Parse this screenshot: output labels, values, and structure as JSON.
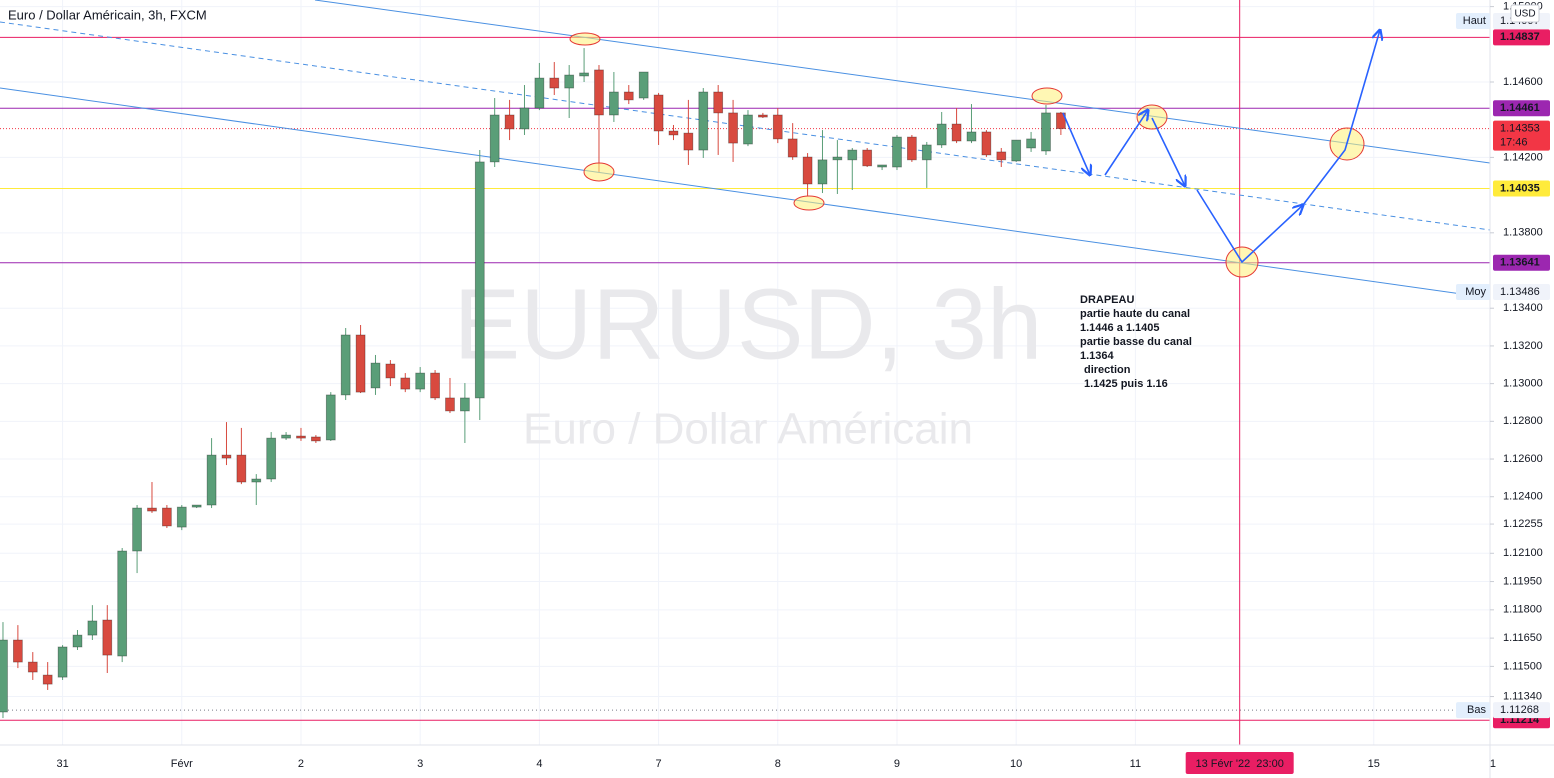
{
  "chart_data": {
    "type": "candlestick",
    "title": "Euro / Dollar Américain, 3h, FXCM",
    "watermark": "EURUSD, 3h",
    "watermark_subtitle": "Euro / Dollar Américain",
    "currency": "USD",
    "xlim": [
      -0.2,
      99.8
    ],
    "ylim": [
      1.11083,
      1.15035
    ],
    "grid": true,
    "up_color": "#5a9e78",
    "down_color": "#d84a3f",
    "yticks": [
      {
        "value": 1.15,
        "label": "1.15000"
      },
      {
        "value": 1.146,
        "label": "1.14600"
      },
      {
        "value": 1.142,
        "label": "1.14200"
      },
      {
        "value": 1.138,
        "label": "1.13800"
      },
      {
        "value": 1.134,
        "label": "1.13400"
      },
      {
        "value": 1.132,
        "label": "1.13200"
      },
      {
        "value": 1.13,
        "label": "1.13000"
      },
      {
        "value": 1.128,
        "label": "1.12800"
      },
      {
        "value": 1.126,
        "label": "1.12600"
      },
      {
        "value": 1.124,
        "label": "1.12400"
      },
      {
        "value": 1.12255,
        "label": "1.12255"
      },
      {
        "value": 1.121,
        "label": "1.12100"
      },
      {
        "value": 1.1195,
        "label": "1.11950"
      },
      {
        "value": 1.118,
        "label": "1.11800"
      },
      {
        "value": 1.1165,
        "label": "1.11650"
      },
      {
        "value": 1.115,
        "label": "1.11500"
      },
      {
        "value": 1.1134,
        "label": "1.11340"
      }
    ],
    "xticks": [
      {
        "value": 4,
        "label": "31"
      },
      {
        "value": 12,
        "label": "Févr"
      },
      {
        "value": 20,
        "label": "2"
      },
      {
        "value": 28,
        "label": "3"
      },
      {
        "value": 36,
        "label": "4"
      },
      {
        "value": 44,
        "label": "7"
      },
      {
        "value": 52,
        "label": "8"
      },
      {
        "value": 60,
        "label": "9"
      },
      {
        "value": 68,
        "label": "10"
      },
      {
        "value": 76,
        "label": "11"
      },
      {
        "value": 92,
        "label": "15"
      },
      {
        "value": 100,
        "label": "1"
      }
    ],
    "open": [
      1.11258,
      1.1164,
      1.11523,
      1.11454,
      1.11443,
      1.11603,
      1.11666,
      1.11746,
      1.11555,
      1.12112,
      1.1234,
      1.1234,
      1.12239,
      1.12345,
      1.12356,
      1.12621,
      1.12621,
      1.12478,
      1.12494,
      1.12711,
      1.12722,
      1.12717,
      1.12701,
      1.1294,
      1.13258,
      1.12977,
      1.13104,
      1.1303,
      1.12971,
      1.13056,
      1.12924,
      1.12855,
      1.12924,
      1.14176,
      1.14425,
      1.14351,
      1.14462,
      1.14621,
      1.14568,
      1.14632,
      1.14664,
      1.14425,
      1.14547,
      1.14515,
      1.14531,
      1.1434,
      1.14329,
      1.14239,
      1.14547,
      1.14436,
      1.14271,
      1.14425,
      1.14425,
      1.14298,
      1.14202,
      1.14059,
      1.14187,
      1.14187,
      1.14239,
      1.14149,
      1.14149,
      1.14308,
      1.14187,
      1.14266,
      1.14377,
      1.14287,
      1.14335,
      1.14229,
      1.14181,
      1.1425,
      1.14234,
      1.14436
    ],
    "high": [
      1.11735,
      1.11719,
      1.11576,
      1.11523,
      1.11613,
      1.11693,
      1.11825,
      1.11825,
      1.12128,
      1.12356,
      1.12478,
      1.12356,
      1.12356,
      1.12356,
      1.12711,
      1.12796,
      1.12765,
      1.1252,
      1.12743,
      1.12743,
      1.12765,
      1.12727,
      1.12955,
      1.13295,
      1.13311,
      1.13152,
      1.13125,
      1.13056,
      1.13088,
      1.13072,
      1.1303,
      1.13003,
      1.14239,
      1.14515,
      1.14505,
      1.14584,
      1.14701,
      1.14706,
      1.1469,
      1.1478,
      1.1469,
      1.14653,
      1.14584,
      1.14653,
      1.14542,
      1.14372,
      1.14505,
      1.14568,
      1.14584,
      1.14505,
      1.14451,
      1.14436,
      1.14462,
      1.14382,
      1.14223,
      1.14345,
      1.14292,
      1.1425,
      1.1425,
      1.1416,
      1.14319,
      1.14319,
      1.14282,
      1.14441,
      1.14462,
      1.14483,
      1.14345,
      1.1425,
      1.14292,
      1.14335,
      1.14478,
      1.14441
    ],
    "low": [
      1.11226,
      1.11491,
      1.11428,
      1.11375,
      1.11428,
      1.11587,
      1.1164,
      1.11465,
      1.11523,
      1.11995,
      1.12314,
      1.12234,
      1.12223,
      1.1234,
      1.1234,
      1.12568,
      1.12467,
      1.12356,
      1.12478,
      1.12701,
      1.12696,
      1.12685,
      1.12696,
      1.12913,
      1.1295,
      1.1294,
      1.12987,
      1.12955,
      1.12955,
      1.12913,
      1.12844,
      1.12685,
      1.12807,
      1.14149,
      1.14292,
      1.14319,
      1.14451,
      1.14531,
      1.14409,
      1.146,
      1.14123,
      1.14388,
      1.14483,
      1.14505,
      1.14266,
      1.14292,
      1.1416,
      1.14197,
      1.14213,
      1.14176,
      1.1426,
      1.14409,
      1.14276,
      1.14187,
      1.13995,
      1.14011,
      1.14006,
      1.14027,
      1.14149,
      1.14133,
      1.14133,
      1.14176,
      1.14038,
      1.1425,
      1.14276,
      1.14276,
      1.14202,
      1.14149,
      1.14176,
      1.14229,
      1.14213,
      1.14319
    ],
    "close": [
      1.1164,
      1.11523,
      1.1147,
      1.11406,
      1.11603,
      1.11666,
      1.11741,
      1.1156,
      1.12112,
      1.1234,
      1.12324,
      1.12245,
      1.12345,
      1.12356,
      1.12621,
      1.12605,
      1.12478,
      1.12494,
      1.12711,
      1.12727,
      1.12711,
      1.12696,
      1.1294,
      1.13258,
      1.12955,
      1.13109,
      1.1303,
      1.12971,
      1.13056,
      1.12924,
      1.12855,
      1.12924,
      1.14176,
      1.14425,
      1.14351,
      1.14462,
      1.14621,
      1.14568,
      1.14637,
      1.14648,
      1.14425,
      1.14547,
      1.14505,
      1.14653,
      1.1434,
      1.14319,
      1.14239,
      1.14547,
      1.14436,
      1.14276,
      1.14425,
      1.14414,
      1.14298,
      1.14202,
      1.14059,
      1.14187,
      1.14202,
      1.14239,
      1.14155,
      1.1416,
      1.14308,
      1.14187,
      1.14266,
      1.14377,
      1.14287,
      1.14335,
      1.14213,
      1.14187,
      1.14292,
      1.14298,
      1.14436,
      1.14353
    ],
    "levels": [
      {
        "value": 1.14837,
        "color": "#e91e63"
      },
      {
        "value": 1.14461,
        "color": "#9c27b0"
      },
      {
        "value": 1.14035,
        "color": "#ffeb3b"
      },
      {
        "value": 1.13641,
        "color": "#9c27b0"
      },
      {
        "value": 1.11214,
        "color": "#e91e63"
      }
    ],
    "last_price": {
      "value": 1.14353,
      "countdown": "17:46",
      "color": "#f23645"
    },
    "stats": [
      {
        "name": "Haut",
        "value": 1.14997
      },
      {
        "name": "Moy",
        "value": 1.13486
      },
      {
        "name": "Bas",
        "value": 1.11268,
        "dotted": true
      }
    ],
    "crosshair": {
      "value": 83,
      "label": "13 Févr '22  23:00",
      "color": "#e91e63"
    },
    "annotation": [
      "DRAPEAU",
      "partie haute du canal",
      "1.1446 a 1.1405",
      "partie basse du canal",
      "1.1364",
      "direction",
      "1.1425 puis 1.16"
    ],
    "annotation_color": "#2962ff"
  }
}
